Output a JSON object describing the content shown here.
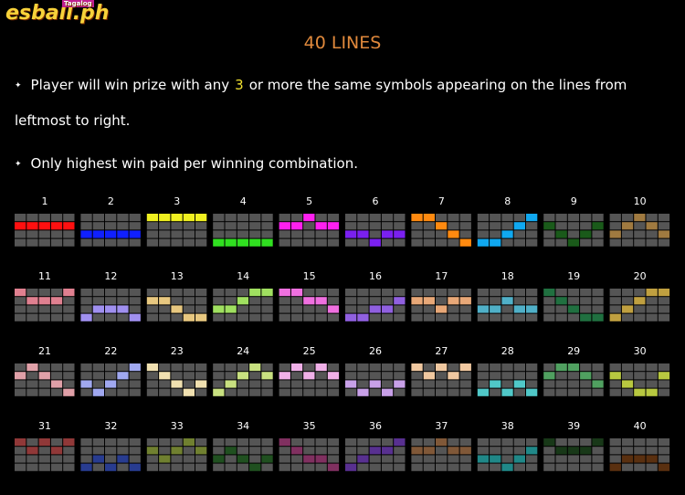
{
  "logo": {
    "text": "esball",
    "suffix": ".ph",
    "tag": "Tagalog"
  },
  "title": "40 LINES",
  "rules": [
    {
      "before": "Player will win prize with any",
      "highlight": "3",
      "after": "or more the same symbols appearing on the lines from leftmost to right."
    },
    {
      "before": "Only highest win paid per winning combination."
    }
  ],
  "lines": [
    {
      "number": 1,
      "color": "#ff1010",
      "rows": [
        1,
        1,
        1,
        1,
        1
      ]
    },
    {
      "number": 2,
      "color": "#1020ff",
      "rows": [
        2,
        2,
        2,
        2,
        2
      ]
    },
    {
      "number": 3,
      "color": "#f0f020",
      "rows": [
        0,
        0,
        0,
        0,
        0
      ]
    },
    {
      "number": 4,
      "color": "#30e020",
      "rows": [
        3,
        3,
        3,
        3,
        3
      ]
    },
    {
      "number": 5,
      "color": "#ff20f0",
      "rows": [
        1,
        1,
        0,
        1,
        1
      ]
    },
    {
      "number": 6,
      "color": "#7a20f0",
      "rows": [
        2,
        2,
        3,
        2,
        2
      ]
    },
    {
      "number": 7,
      "color": "#ff8a10",
      "rows": [
        0,
        0,
        1,
        2,
        3
      ]
    },
    {
      "number": 8,
      "color": "#10a8f0",
      "rows": [
        3,
        3,
        2,
        1,
        0
      ]
    },
    {
      "number": 9,
      "color": "#1a5a1a",
      "rows": [
        1,
        2,
        3,
        2,
        1
      ]
    },
    {
      "number": 10,
      "color": "#a07a40",
      "rows": [
        2,
        1,
        0,
        1,
        2
      ]
    },
    {
      "number": 11,
      "color": "#e08090",
      "rows": [
        0,
        1,
        1,
        1,
        0
      ]
    },
    {
      "number": 12,
      "color": "#a090f0",
      "rows": [
        3,
        2,
        2,
        2,
        3
      ]
    },
    {
      "number": 13,
      "color": "#e8c880",
      "rows": [
        1,
        1,
        2,
        3,
        3
      ]
    },
    {
      "number": 14,
      "color": "#a0e060",
      "rows": [
        2,
        2,
        1,
        0,
        0
      ]
    },
    {
      "number": 15,
      "color": "#f070e0",
      "rows": [
        0,
        0,
        1,
        1,
        2
      ]
    },
    {
      "number": 16,
      "color": "#9060e0",
      "rows": [
        3,
        3,
        2,
        2,
        1
      ]
    },
    {
      "number": 17,
      "color": "#e8a878",
      "rows": [
        1,
        1,
        2,
        1,
        1
      ]
    },
    {
      "number": 18,
      "color": "#50b0c8",
      "rows": [
        2,
        2,
        1,
        2,
        2
      ]
    },
    {
      "number": 19,
      "color": "#207040",
      "rows": [
        0,
        1,
        2,
        3,
        3
      ]
    },
    {
      "number": 20,
      "color": "#c0a040",
      "rows": [
        3,
        2,
        1,
        0,
        0
      ]
    },
    {
      "number": 21,
      "color": "#e0a0a8",
      "rows": [
        1,
        0,
        1,
        2,
        3
      ]
    },
    {
      "number": 22,
      "color": "#a0a8f0",
      "rows": [
        2,
        3,
        2,
        1,
        0
      ]
    },
    {
      "number": 23,
      "color": "#f0e0b0",
      "rows": [
        0,
        1,
        2,
        3,
        2
      ]
    },
    {
      "number": 24,
      "color": "#c8e080",
      "rows": [
        3,
        2,
        1,
        0,
        1
      ]
    },
    {
      "number": 25,
      "color": "#f0b0e8",
      "rows": [
        1,
        0,
        1,
        0,
        1
      ]
    },
    {
      "number": 26,
      "color": "#c8a0e8",
      "rows": [
        2,
        3,
        2,
        3,
        2
      ]
    },
    {
      "number": 27,
      "color": "#f0c8a0",
      "rows": [
        0,
        1,
        0,
        1,
        0
      ]
    },
    {
      "number": 28,
      "color": "#50c8c8",
      "rows": [
        3,
        2,
        3,
        2,
        3
      ]
    },
    {
      "number": 29,
      "color": "#50a060",
      "rows": [
        1,
        0,
        0,
        1,
        2
      ]
    },
    {
      "number": 30,
      "color": "#b8c840",
      "rows": [
        1,
        2,
        3,
        3,
        1
      ]
    },
    {
      "number": 31,
      "color": "#903838",
      "rows": [
        0,
        1,
        0,
        1,
        0
      ]
    },
    {
      "number": 32,
      "color": "#283c90",
      "rows": [
        3,
        2,
        3,
        2,
        3
      ]
    },
    {
      "number": 33,
      "color": "#708030",
      "rows": [
        1,
        2,
        1,
        0,
        1
      ]
    },
    {
      "number": 34,
      "color": "#205020",
      "rows": [
        2,
        1,
        2,
        3,
        2
      ]
    },
    {
      "number": 35,
      "color": "#803060",
      "rows": [
        0,
        1,
        2,
        2,
        3
      ]
    },
    {
      "number": 36,
      "color": "#583090",
      "rows": [
        3,
        2,
        1,
        1,
        0
      ]
    },
    {
      "number": 37,
      "color": "#805838",
      "rows": [
        1,
        1,
        0,
        1,
        1
      ]
    },
    {
      "number": 38,
      "color": "#208888",
      "rows": [
        2,
        2,
        3,
        2,
        1
      ]
    },
    {
      "number": 39,
      "color": "#183818",
      "rows": [
        0,
        1,
        1,
        1,
        0
      ]
    },
    {
      "number": 40,
      "color": "#5a3010",
      "rows": [
        3,
        2,
        2,
        2,
        3
      ]
    }
  ]
}
